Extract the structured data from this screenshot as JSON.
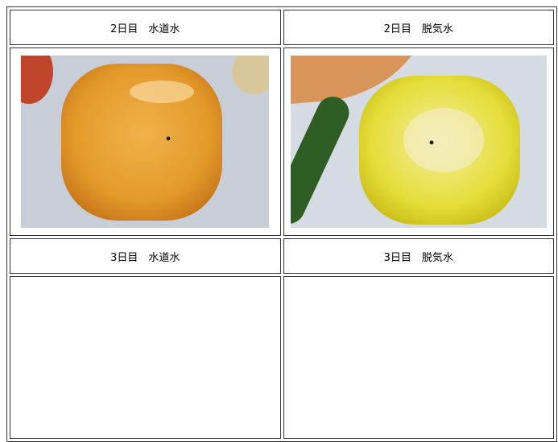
{
  "table": {
    "rows": [
      [
        "2日目　水道水",
        "2日目　脱気水"
      ],
      [
        "3日目　水道水",
        "3日目　脱気水"
      ]
    ]
  }
}
